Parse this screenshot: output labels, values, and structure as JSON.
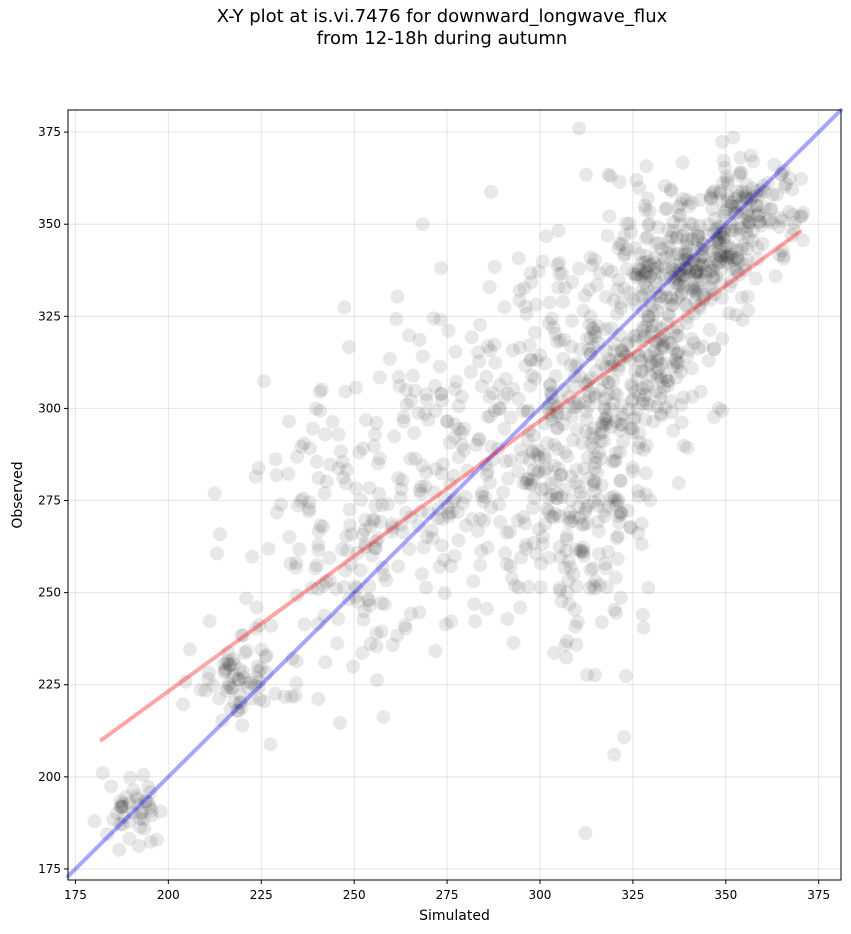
{
  "chart_data": {
    "type": "scatter",
    "title_line1": "X-Y plot at is.vi.7476 for downward_longwave_flux",
    "title_line2": "from 12-18h during autumn",
    "xlabel": "Simulated",
    "ylabel": "Observed",
    "xlim": [
      173,
      381
    ],
    "ylim": [
      172,
      381
    ],
    "xticks": [
      175,
      200,
      225,
      250,
      275,
      300,
      325,
      350,
      375
    ],
    "yticks": [
      175,
      200,
      225,
      250,
      275,
      300,
      325,
      350,
      375
    ],
    "grid": true,
    "point_color": "#000000",
    "point_opacity": 0.09,
    "clusters": [
      {
        "cx": 190,
        "cy": 191,
        "sx": 3.5,
        "sy": 4,
        "n": 45
      },
      {
        "cx": 220,
        "cy": 226,
        "sx": 6,
        "sy": 6,
        "n": 70
      },
      {
        "cx": 245,
        "cy": 265,
        "sx": 12,
        "sy": 20,
        "n": 150
      },
      {
        "cx": 278,
        "cy": 285,
        "sx": 15,
        "sy": 25,
        "n": 190
      },
      {
        "cx": 305,
        "cy": 295,
        "sx": 9,
        "sy": 30,
        "n": 220
      },
      {
        "cx": 318,
        "cy": 290,
        "sx": 7,
        "sy": 28,
        "n": 180
      },
      {
        "cx": 330,
        "cy": 318,
        "sx": 7,
        "sy": 16,
        "n": 180
      },
      {
        "cx": 342,
        "cy": 340,
        "sx": 9,
        "sy": 9,
        "n": 240
      },
      {
        "cx": 356,
        "cy": 354,
        "sx": 7,
        "sy": 7,
        "n": 110
      }
    ],
    "lines": [
      {
        "color": "#0000ff",
        "opacity": 0.35,
        "x": [
          173,
          381
        ],
        "y": [
          173,
          381
        ]
      },
      {
        "color": "#ff0000",
        "opacity": 0.35,
        "x": [
          182,
          370
        ],
        "y": [
          210,
          348
        ]
      }
    ]
  }
}
